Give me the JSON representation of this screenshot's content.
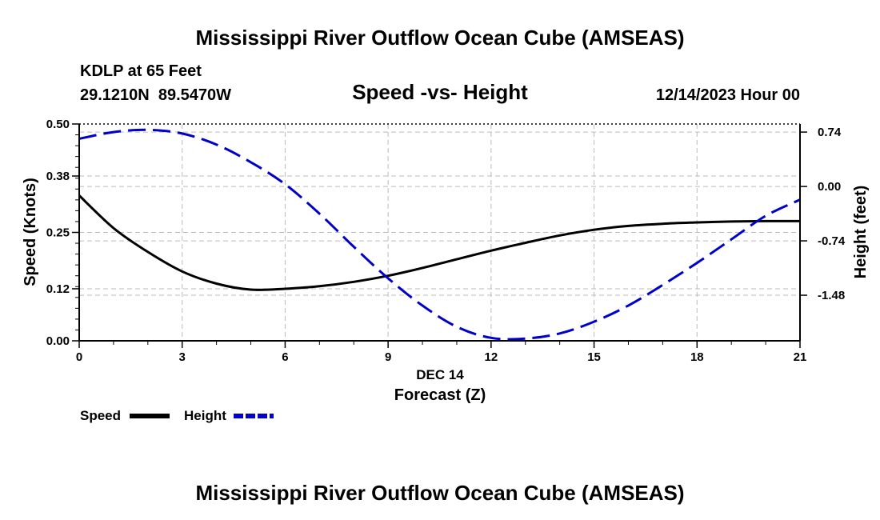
{
  "page": {
    "title_top": "Mississippi River Outflow Ocean Cube (AMSEAS)",
    "title_bottom": "Mississippi River Outflow Ocean Cube (AMSEAS)",
    "station": "KDLP at 65 Feet",
    "coords": "29.1210N  89.5470W",
    "date": "12/14/2023 Hour 00"
  },
  "chart_data": {
    "type": "line",
    "title": "Speed -vs- Height",
    "xlabel": "Forecast (Z)",
    "xlabel_date": "DEC 14",
    "ylabel": "Speed (Knots)",
    "y2label": "Height (feet)",
    "xlim": [
      0,
      21
    ],
    "ylim": [
      0,
      0.5
    ],
    "y2lim": [
      -2.1,
      0.85
    ],
    "x_ticks": [
      "0",
      "3",
      "6",
      "9",
      "12",
      "15",
      "18",
      "21"
    ],
    "y_ticks": [
      "0.00",
      "0.12",
      "0.25",
      "0.38",
      "0.50"
    ],
    "y2_ticks": [
      "0.74",
      "0.00",
      "-0.74",
      "-1.48"
    ],
    "colors": {
      "speed": "#000000",
      "height": "#0000cc",
      "grid": "#bbbbbb"
    },
    "legend": {
      "position": "bottom-left",
      "speed_label": "Speed",
      "height_label": "Height"
    },
    "series": [
      {
        "name": "Speed",
        "axis": "left",
        "style": "solid",
        "x": [
          0,
          1,
          2,
          3,
          4,
          5,
          6,
          7,
          8,
          9,
          10,
          11,
          12,
          13,
          14,
          15,
          16,
          17,
          18,
          19,
          20,
          21
        ],
        "values": [
          0.335,
          0.26,
          0.205,
          0.16,
          0.132,
          0.118,
          0.12,
          0.126,
          0.136,
          0.15,
          0.168,
          0.188,
          0.208,
          0.226,
          0.243,
          0.256,
          0.265,
          0.27,
          0.273,
          0.275,
          0.276,
          0.276
        ]
      },
      {
        "name": "Height",
        "axis": "right",
        "style": "dashed",
        "x": [
          0,
          1,
          2,
          3,
          4,
          5,
          6,
          7,
          8,
          9,
          10,
          11,
          12,
          13,
          14,
          15,
          16,
          17,
          18,
          19,
          20,
          21
        ],
        "values": [
          0.65,
          0.74,
          0.77,
          0.72,
          0.57,
          0.33,
          0.03,
          -0.37,
          -0.82,
          -1.25,
          -1.62,
          -1.91,
          -2.06,
          -2.07,
          -2.0,
          -1.84,
          -1.62,
          -1.34,
          -1.04,
          -0.72,
          -0.4,
          -0.18
        ]
      }
    ]
  }
}
